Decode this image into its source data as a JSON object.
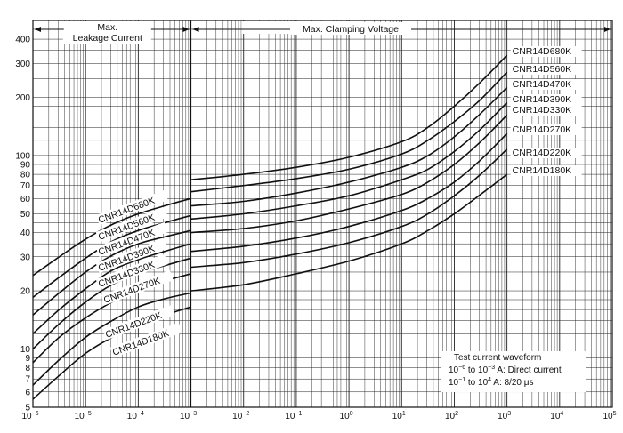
{
  "chart_data": {
    "type": "line",
    "title": "",
    "xscale": "log",
    "yscale": "log",
    "xlim_exp": [
      -6,
      5
    ],
    "ylim": [
      5,
      500
    ],
    "x_ticks": [
      {
        "base": "10",
        "exp": "−6"
      },
      {
        "base": "10",
        "exp": "−5"
      },
      {
        "base": "10",
        "exp": "−4"
      },
      {
        "base": "10",
        "exp": "−3"
      },
      {
        "base": "10",
        "exp": "−2"
      },
      {
        "base": "10",
        "exp": "−1"
      },
      {
        "base": "10",
        "exp": "0"
      },
      {
        "base": "10",
        "exp": "1"
      },
      {
        "base": "10",
        "exp": "2"
      },
      {
        "base": "10",
        "exp": "3"
      },
      {
        "base": "10",
        "exp": "4"
      },
      {
        "base": "10",
        "exp": "5"
      }
    ],
    "y_ticks": [
      "5",
      "6",
      "7",
      "8",
      "9",
      "10",
      "20",
      "30",
      "40",
      "50",
      "60",
      "70",
      "80",
      "90",
      "100",
      "200",
      "300",
      "400"
    ],
    "regions": [
      {
        "line1": "Max.",
        "line2": "Leakage Current",
        "from": -6,
        "to": -3
      },
      {
        "line1": "Max. Clamping Voltage",
        "line2": "",
        "from": -3,
        "to": 5
      }
    ],
    "note": {
      "line1": "Test current waveform",
      "line2_base": "10",
      "line2_exp1": "−6",
      "line2_mid": " to 10",
      "line2_exp2": "−3",
      "line2_tail": " A: Direct current",
      "line3_base": "10",
      "line3_exp1": "−1",
      "line3_mid": " to 10",
      "line3_exp2": "4",
      "line3_tail": " A:  8/20 μs"
    },
    "series": [
      {
        "name": "CNR14D680K",
        "leakage": [
          [
            -6,
            24
          ],
          [
            -5.5,
            30
          ],
          [
            -5,
            37
          ],
          [
            -4.5,
            44
          ],
          [
            -4,
            50
          ],
          [
            -3.5,
            55
          ],
          [
            -3,
            60
          ]
        ],
        "clamping": [
          [
            -3,
            75
          ],
          [
            -2,
            80
          ],
          [
            -1,
            87
          ],
          [
            0,
            98
          ],
          [
            1,
            118
          ],
          [
            1.5,
            140
          ],
          [
            2,
            180
          ],
          [
            2.5,
            240
          ],
          [
            3,
            330
          ]
        ]
      },
      {
        "name": "CNR14D560K",
        "leakage": [
          [
            -6,
            18.5
          ],
          [
            -5.5,
            23.5
          ],
          [
            -5,
            29.5
          ],
          [
            -4.5,
            36
          ],
          [
            -4,
            41
          ],
          [
            -3.5,
            45
          ],
          [
            -3,
            49
          ]
        ],
        "clamping": [
          [
            -3,
            65
          ],
          [
            -2,
            70
          ],
          [
            -1,
            76
          ],
          [
            0,
            85
          ],
          [
            1,
            102
          ],
          [
            1.5,
            120
          ],
          [
            2,
            150
          ],
          [
            2.5,
            195
          ],
          [
            3,
            270
          ]
        ]
      },
      {
        "name": "CNR14D470K",
        "leakage": [
          [
            -6,
            15
          ],
          [
            -5.5,
            19.5
          ],
          [
            -5,
            25
          ],
          [
            -4.5,
            30.5
          ],
          [
            -4,
            35
          ],
          [
            -3.5,
            38
          ],
          [
            -3,
            41
          ]
        ],
        "clamping": [
          [
            -3,
            55
          ],
          [
            -2,
            58
          ],
          [
            -1,
            64
          ],
          [
            0,
            73
          ],
          [
            1,
            87
          ],
          [
            1.5,
            100
          ],
          [
            2,
            125
          ],
          [
            2.5,
            165
          ],
          [
            3,
            225
          ]
        ]
      },
      {
        "name": "CNR14D390K",
        "leakage": [
          [
            -6,
            12
          ],
          [
            -5.5,
            16
          ],
          [
            -5,
            20.5
          ],
          [
            -4.5,
            25.5
          ],
          [
            -4,
            29
          ],
          [
            -3.5,
            32
          ],
          [
            -3,
            35
          ]
        ],
        "clamping": [
          [
            -3,
            47
          ],
          [
            -2,
            50
          ],
          [
            -1,
            55
          ],
          [
            0,
            62
          ],
          [
            1,
            75
          ],
          [
            1.5,
            85
          ],
          [
            2,
            105
          ],
          [
            2.5,
            137
          ],
          [
            3,
            188
          ]
        ]
      },
      {
        "name": "CNR14D330K",
        "leakage": [
          [
            -6,
            10
          ],
          [
            -5.5,
            13.5
          ],
          [
            -5,
            17.5
          ],
          [
            -4.5,
            21.5
          ],
          [
            -4,
            24.5
          ],
          [
            -3.5,
            27
          ],
          [
            -3,
            29.5
          ]
        ],
        "clamping": [
          [
            -3,
            40
          ],
          [
            -2,
            42
          ],
          [
            -1,
            46
          ],
          [
            0,
            53
          ],
          [
            1,
            63
          ],
          [
            1.5,
            73
          ],
          [
            2,
            90
          ],
          [
            2.5,
            118
          ],
          [
            3,
            162
          ]
        ]
      },
      {
        "name": "CNR14D270K",
        "leakage": [
          [
            -6,
            8.5
          ],
          [
            -5.5,
            11.5
          ],
          [
            -5,
            14.5
          ],
          [
            -4.5,
            17.5
          ],
          [
            -4,
            20.5
          ],
          [
            -3.5,
            22.5
          ],
          [
            -3,
            24.5
          ]
        ],
        "clamping": [
          [
            -3,
            32
          ],
          [
            -2,
            34
          ],
          [
            -1,
            37.5
          ],
          [
            0,
            43
          ],
          [
            1,
            52
          ],
          [
            1.5,
            60
          ],
          [
            2,
            73
          ],
          [
            2.5,
            95
          ],
          [
            3,
            130
          ]
        ]
      },
      {
        "name": "CNR14D220K",
        "leakage": [
          [
            -6,
            6.5
          ],
          [
            -5.5,
            8.8
          ],
          [
            -5,
            11.5
          ],
          [
            -4.5,
            14
          ],
          [
            -4,
            16.5
          ],
          [
            -3.5,
            18.2
          ],
          [
            -3,
            19.5
          ]
        ],
        "clamping": [
          [
            -3,
            26.5
          ],
          [
            -2,
            28
          ],
          [
            -1,
            31
          ],
          [
            0,
            35.5
          ],
          [
            1,
            43
          ],
          [
            1.5,
            50
          ],
          [
            2,
            62
          ],
          [
            2.5,
            80
          ],
          [
            3,
            108
          ]
        ]
      },
      {
        "name": "CNR14D180K",
        "leakage": [
          [
            -6,
            5.5
          ],
          [
            -5.5,
            7.3
          ],
          [
            -5,
            9.5
          ],
          [
            -4.5,
            11.5
          ],
          [
            -4,
            13.5
          ],
          [
            -3.5,
            15
          ],
          [
            -3,
            16.5
          ]
        ],
        "clamping": [
          [
            -3,
            20
          ],
          [
            -2,
            21.5
          ],
          [
            -1,
            24.5
          ],
          [
            0,
            28.5
          ],
          [
            1,
            35
          ],
          [
            1.5,
            41
          ],
          [
            2,
            50
          ],
          [
            2.5,
            63
          ],
          [
            3,
            80
          ]
        ]
      }
    ]
  }
}
